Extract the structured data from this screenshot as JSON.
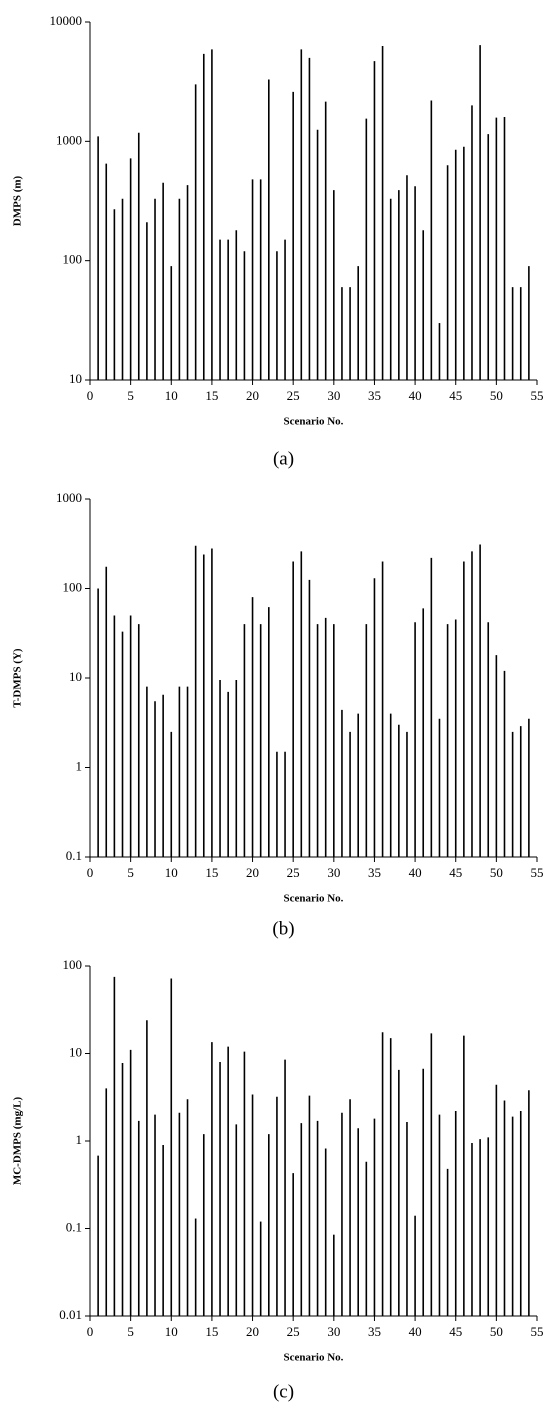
{
  "chart_data": [
    {
      "type": "bar",
      "caption": "(a)",
      "x_label": "Scenario No.",
      "y_label": "DMPS (m)",
      "color": "#000000",
      "log_y": true,
      "x": [
        1,
        2,
        3,
        4,
        5,
        6,
        7,
        8,
        9,
        10,
        11,
        12,
        13,
        14,
        15,
        16,
        17,
        18,
        19,
        20,
        21,
        22,
        23,
        24,
        25,
        26,
        27,
        28,
        29,
        30,
        31,
        32,
        33,
        34,
        35,
        36,
        37,
        38,
        39,
        40,
        41,
        42,
        43,
        44,
        45,
        46,
        47,
        48,
        49,
        50,
        51,
        52,
        53,
        54
      ],
      "values": [
        1100,
        650,
        270,
        330,
        720,
        1180,
        210,
        330,
        450,
        90,
        330,
        430,
        3000,
        5400,
        5900,
        150,
        150,
        180,
        120,
        480,
        480,
        3300,
        120,
        150,
        2600,
        5900,
        5000,
        1250,
        2150,
        390,
        60,
        60,
        90,
        1550,
        4700,
        6300,
        330,
        390,
        520,
        420,
        180,
        2200,
        30,
        630,
        850,
        900,
        2000,
        6400,
        1150,
        1580,
        1600,
        60,
        60,
        90
      ],
      "xlim": [
        0,
        55
      ],
      "xticks": [
        0,
        5,
        10,
        15,
        20,
        25,
        30,
        35,
        40,
        45,
        50,
        55
      ],
      "ylim": [
        10,
        10000
      ],
      "yticks": [
        10,
        100,
        1000,
        10000
      ]
    },
    {
      "type": "bar",
      "caption": "(b)",
      "x_label": "Scenario No.",
      "y_label": "T-DMPS (Y)",
      "color": "#000000",
      "log_y": true,
      "x": [
        1,
        2,
        3,
        4,
        5,
        6,
        7,
        8,
        9,
        10,
        11,
        12,
        13,
        14,
        15,
        16,
        17,
        18,
        19,
        20,
        21,
        22,
        23,
        24,
        25,
        26,
        27,
        28,
        29,
        30,
        31,
        32,
        33,
        34,
        35,
        36,
        37,
        38,
        39,
        40,
        41,
        42,
        43,
        44,
        45,
        46,
        47,
        48,
        49,
        50,
        51,
        52,
        53,
        54
      ],
      "values": [
        100,
        175,
        50,
        33,
        50,
        40,
        8,
        5.5,
        6.5,
        2.5,
        8,
        8,
        300,
        240,
        280,
        9.5,
        7,
        9.5,
        40,
        80,
        40,
        62,
        1.5,
        1.5,
        200,
        260,
        125,
        40,
        47,
        40,
        4.4,
        2.5,
        4,
        40,
        130,
        200,
        4,
        3,
        2.5,
        42,
        60,
        220,
        3.5,
        40,
        45,
        200,
        260,
        310,
        42,
        18,
        12,
        2.5,
        2.9,
        3.5
      ],
      "xlim": [
        0,
        55
      ],
      "xticks": [
        0,
        5,
        10,
        15,
        20,
        25,
        30,
        35,
        40,
        45,
        50,
        55
      ],
      "ylim": [
        0.1,
        1000
      ],
      "yticks": [
        0.1,
        1,
        10,
        100,
        1000
      ]
    },
    {
      "type": "bar",
      "caption": "(c)",
      "x_label": "Scenario No.",
      "y_label": "MC-DMPS (mg/L)",
      "color": "#000000",
      "log_y": true,
      "x": [
        1,
        2,
        3,
        4,
        5,
        6,
        7,
        8,
        9,
        10,
        11,
        12,
        13,
        14,
        15,
        16,
        17,
        18,
        19,
        20,
        21,
        22,
        23,
        24,
        25,
        26,
        27,
        28,
        29,
        30,
        31,
        32,
        33,
        34,
        35,
        36,
        37,
        38,
        39,
        40,
        41,
        42,
        43,
        44,
        45,
        46,
        47,
        48,
        49,
        50,
        51,
        52,
        53,
        54
      ],
      "values": [
        0.68,
        4,
        75,
        7.8,
        11,
        1.7,
        24,
        2,
        0.9,
        72,
        2.1,
        3,
        0.13,
        1.2,
        13.5,
        8,
        12,
        1.55,
        10.5,
        3.4,
        0.12,
        1.2,
        3.2,
        8.5,
        0.43,
        1.6,
        3.3,
        1.7,
        0.82,
        0.085,
        2.1,
        3,
        1.4,
        0.58,
        1.8,
        17.5,
        15,
        6.5,
        1.65,
        0.14,
        6.7,
        17,
        2,
        0.48,
        2.2,
        16,
        0.95,
        1.05,
        1.1,
        4.4,
        2.9,
        1.9,
        2.2,
        3.8
      ],
      "xlim": [
        0,
        55
      ],
      "xticks": [
        0,
        5,
        10,
        15,
        20,
        25,
        30,
        35,
        40,
        45,
        50,
        55
      ],
      "ylim": [
        0.01,
        100
      ],
      "yticks": [
        0.01,
        0.1,
        1,
        10,
        100
      ]
    }
  ]
}
